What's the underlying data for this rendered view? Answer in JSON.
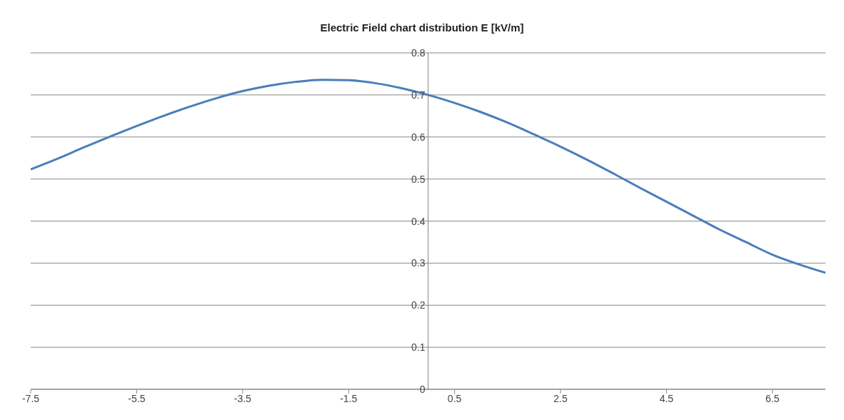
{
  "chart_data": {
    "type": "line",
    "title": "Electric Field chart distribution E [kV/m]",
    "x": [
      -7.5,
      -7,
      -6.5,
      -6,
      -5.5,
      -5,
      -4.5,
      -4,
      -3.5,
      -3,
      -2.5,
      -2,
      -1.5,
      -1,
      -0.5,
      0,
      0.5,
      1,
      1.5,
      2,
      2.5,
      3,
      3.5,
      4,
      4.5,
      5,
      5.5,
      6,
      6.5,
      7,
      7.5
    ],
    "series": [
      {
        "color": "#4a7ebb",
        "values": [
          0.523,
          0.548,
          0.575,
          0.601,
          0.626,
          0.65,
          0.672,
          0.692,
          0.709,
          0.722,
          0.731,
          0.736,
          0.735,
          0.728,
          0.716,
          0.7,
          0.681,
          0.659,
          0.634,
          0.606,
          0.577,
          0.546,
          0.513,
          0.479,
          0.446,
          0.413,
          0.38,
          0.35,
          0.32,
          0.297,
          0.277
        ]
      }
    ],
    "xlim": [
      -7.5,
      7.5
    ],
    "xticks": [
      -7.5,
      -5.5,
      -3.5,
      -1.5,
      0.5,
      2.5,
      4.5,
      6.5
    ],
    "ylim": [
      0,
      0.8
    ],
    "yticks": [
      0,
      0.1,
      0.2,
      0.3,
      0.4,
      0.5,
      0.6,
      0.7,
      0.8
    ],
    "grid": "y",
    "marker": "none",
    "line_style": "solid"
  }
}
